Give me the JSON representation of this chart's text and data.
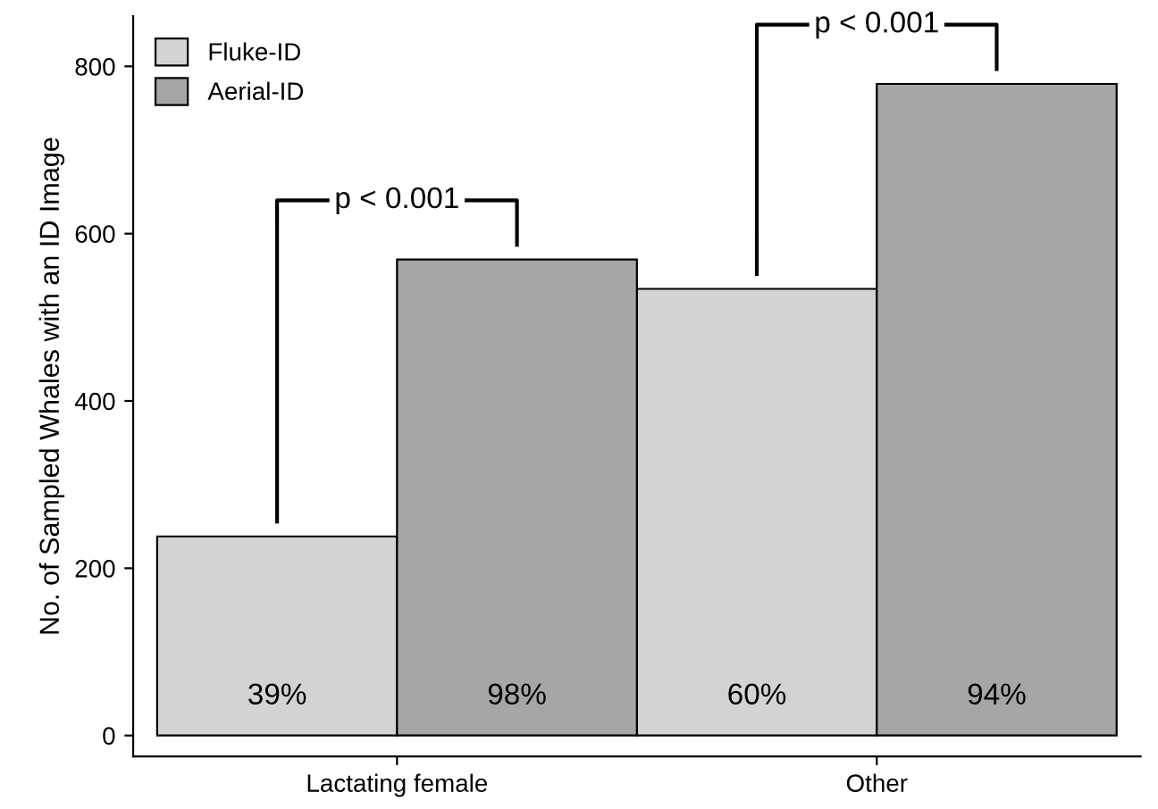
{
  "chart_data": {
    "type": "bar",
    "ylabel": "No. of Sampled Whales with an ID Image",
    "categories": [
      "Lactating female",
      "Other"
    ],
    "series": [
      {
        "name": "Fluke-ID",
        "color": "#d3d3d3",
        "values": [
          238,
          534
        ]
      },
      {
        "name": "Aerial-ID",
        "color": "#a6a6a6",
        "values": [
          569,
          779
        ]
      }
    ],
    "ylim": [
      -25,
      860
    ],
    "yticks": [
      0,
      200,
      400,
      600,
      800
    ],
    "annotations": [
      "p < 0.001",
      "p < 0.001",
      "39%",
      "60%",
      "98%",
      "94%"
    ],
    "legend": "top left",
    "grid": false
  }
}
